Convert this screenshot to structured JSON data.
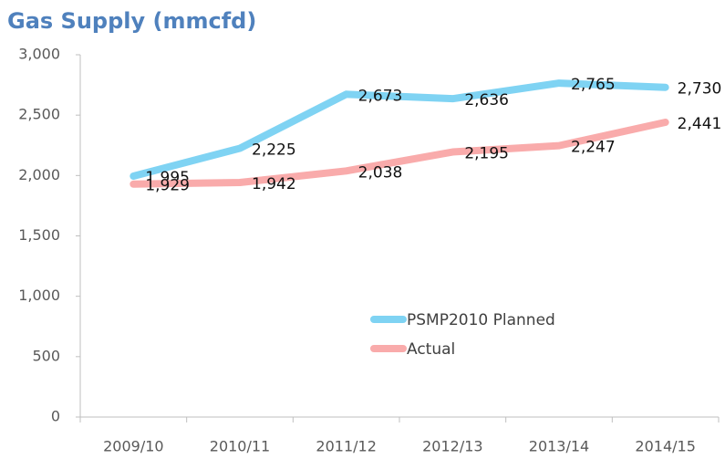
{
  "chart_data": {
    "type": "line",
    "title": "Gas Supply (mmcfd)",
    "categories": [
      "2009/10",
      "2010/11",
      "2011/12",
      "2012/13",
      "2013/14",
      "2014/15"
    ],
    "series": [
      {
        "name": "PSMP2010 Planned",
        "color": "#7fd3f3",
        "values": [
          1995,
          2225,
          2673,
          2636,
          2765,
          2730
        ],
        "value_labels": [
          "1,995",
          "2,225",
          "2,673",
          "2,636",
          "2,765",
          "2,730"
        ]
      },
      {
        "name": "Actual",
        "color": "#f9abab",
        "values": [
          1929,
          1942,
          2038,
          2195,
          2247,
          2441
        ],
        "value_labels": [
          "1,929",
          "1,942",
          "2,038",
          "2,195",
          "2,247",
          "2,441"
        ]
      }
    ],
    "ylim": [
      0,
      3000
    ],
    "yticks": [
      0,
      500,
      {
        "value": 1000,
        "label": "1,000"
      },
      {
        "value": 1500,
        "label": "1,500"
      },
      {
        "value": 2000,
        "label": "2,000"
      },
      {
        "value": 2500,
        "label": "2,500"
      },
      {
        "value": 3000,
        "label": "3,000"
      }
    ],
    "grid": false
  }
}
